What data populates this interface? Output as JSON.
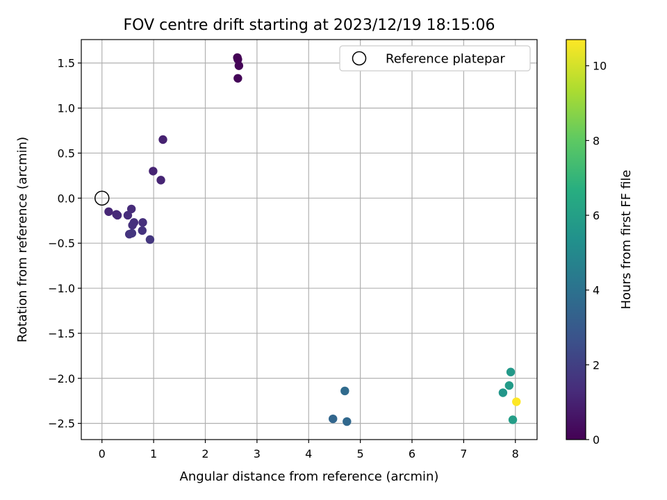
{
  "chart_data": {
    "type": "scatter",
    "title": "FOV centre drift starting at 2023/12/19 18:15:06",
    "xlabel": "Angular distance from reference (arcmin)",
    "ylabel": "Rotation from reference (arcmin)",
    "xlim": [
      -0.4,
      8.42
    ],
    "ylim": [
      -2.68,
      1.76
    ],
    "xticks": [
      "0",
      "1",
      "2",
      "3",
      "4",
      "5",
      "6",
      "7",
      "8"
    ],
    "yticks": [
      "1.5",
      "1.0",
      "0.5",
      "0.0",
      "−0.5",
      "−1.0",
      "−1.5",
      "−2.0",
      "−2.5"
    ],
    "grid": true,
    "legend": {
      "placement": "top-right",
      "entries": [
        "Reference platepar"
      ]
    },
    "reference_point": {
      "x": 0.0,
      "y": 0.0
    },
    "colorbar": {
      "label": "Hours from first FF file",
      "range": [
        0,
        10.7
      ],
      "ticks": [
        "0",
        "2",
        "4",
        "6",
        "8",
        "10"
      ],
      "colormap": "viridis"
    },
    "points": [
      {
        "x": 2.62,
        "y": 1.56,
        "hours": 0.0
      },
      {
        "x": 2.63,
        "y": 1.54,
        "hours": 0.05
      },
      {
        "x": 2.65,
        "y": 1.47,
        "hours": 0.1
      },
      {
        "x": 2.63,
        "y": 1.33,
        "hours": 0.15
      },
      {
        "x": 1.18,
        "y": 0.65,
        "hours": 1.0
      },
      {
        "x": 0.99,
        "y": 0.3,
        "hours": 1.05
      },
      {
        "x": 1.14,
        "y": 0.2,
        "hours": 1.1
      },
      {
        "x": 0.13,
        "y": -0.15,
        "hours": 1.15
      },
      {
        "x": 0.28,
        "y": -0.18,
        "hours": 1.2
      },
      {
        "x": 0.3,
        "y": -0.19,
        "hours": 1.25
      },
      {
        "x": 0.57,
        "y": -0.12,
        "hours": 1.3
      },
      {
        "x": 0.5,
        "y": -0.19,
        "hours": 1.35
      },
      {
        "x": 0.62,
        "y": -0.27,
        "hours": 1.4
      },
      {
        "x": 0.79,
        "y": -0.27,
        "hours": 1.45
      },
      {
        "x": 0.59,
        "y": -0.3,
        "hours": 1.5
      },
      {
        "x": 0.78,
        "y": -0.36,
        "hours": 1.55
      },
      {
        "x": 0.53,
        "y": -0.4,
        "hours": 1.6
      },
      {
        "x": 0.58,
        "y": -0.39,
        "hours": 1.65
      },
      {
        "x": 0.93,
        "y": -0.46,
        "hours": 1.7
      },
      {
        "x": 4.47,
        "y": -2.45,
        "hours": 3.5
      },
      {
        "x": 4.74,
        "y": -2.48,
        "hours": 3.6
      },
      {
        "x": 4.7,
        "y": -2.14,
        "hours": 3.7
      },
      {
        "x": 7.76,
        "y": -2.16,
        "hours": 5.6
      },
      {
        "x": 7.91,
        "y": -1.93,
        "hours": 5.7
      },
      {
        "x": 7.88,
        "y": -2.08,
        "hours": 5.8
      },
      {
        "x": 7.95,
        "y": -2.46,
        "hours": 5.9
      },
      {
        "x": 8.02,
        "y": -2.26,
        "hours": 10.7
      }
    ]
  }
}
